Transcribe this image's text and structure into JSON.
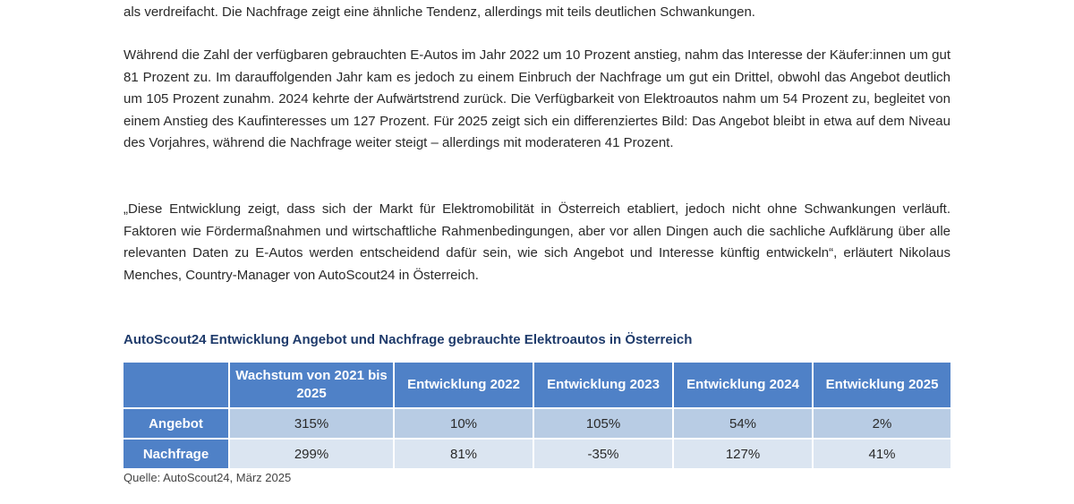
{
  "document": {
    "paragraphs": [
      "als verdreifacht. Die Nachfrage zeigt eine ähnliche Tendenz, allerdings mit teils deutlichen Schwankungen.",
      "Während die Zahl der verfügbaren gebrauchten E-Autos im Jahr 2022 um 10 Prozent anstieg, nahm das Interesse der Käufer:innen um gut 81 Prozent zu. Im darauffolgenden Jahr kam es jedoch zu einem Einbruch der Nachfrage um gut ein Drittel, obwohl das Angebot deutlich um 105 Prozent zunahm. 2024 kehrte der Aufwärtstrend zurück. Die Verfügbarkeit von Elektroautos nahm um 54 Prozent zu, begleitet von einem Anstieg des Kaufinteresses um 127 Prozent. Für 2025 zeigt sich ein differenziertes Bild: Das Angebot bleibt in etwa auf dem Niveau des Vorjahres, während die Nachfrage weiter steigt – allerdings mit moderateren 41 Prozent.",
      "„Diese Entwicklung zeigt, dass sich der Markt für Elektromobilität in Österreich etabliert, jedoch nicht ohne Schwankungen verläuft. Faktoren wie Fördermaßnahmen und wirtschaftliche Rahmenbedingungen, aber vor allen Dingen auch die sachliche Aufklärung über alle relevanten Daten zu E-Autos werden entscheidend dafür sein, wie sich Angebot und Interesse künftig entwickeln“, erläutert Nikolaus Menches, Country-Manager von AutoScout24 in Österreich."
    ],
    "table_title": "AutoScout24 Entwicklung Angebot und Nachfrage gebrauchte Elektroautos in Österreich",
    "table": {
      "headers": [
        "",
        "Wachstum von 2021 bis 2025",
        "Entwicklung 2022",
        "Entwicklung 2023",
        "Entwicklung 2024",
        "Entwicklung 2025"
      ],
      "rows": [
        {
          "label": "Angebot",
          "cells": [
            "315%",
            "10%",
            "105%",
            "54%",
            "2%"
          ]
        },
        {
          "label": "Nachfrage",
          "cells": [
            "299%",
            "81%",
            "-35%",
            "127%",
            "41%"
          ]
        }
      ]
    },
    "source": "Quelle: AutoScout24, März 2025"
  },
  "colors": {
    "header_blue": "#4f81c7",
    "row_dark": "#b8cce4",
    "row_light": "#dbe5f1",
    "title_navy": "#1f3b6b"
  }
}
